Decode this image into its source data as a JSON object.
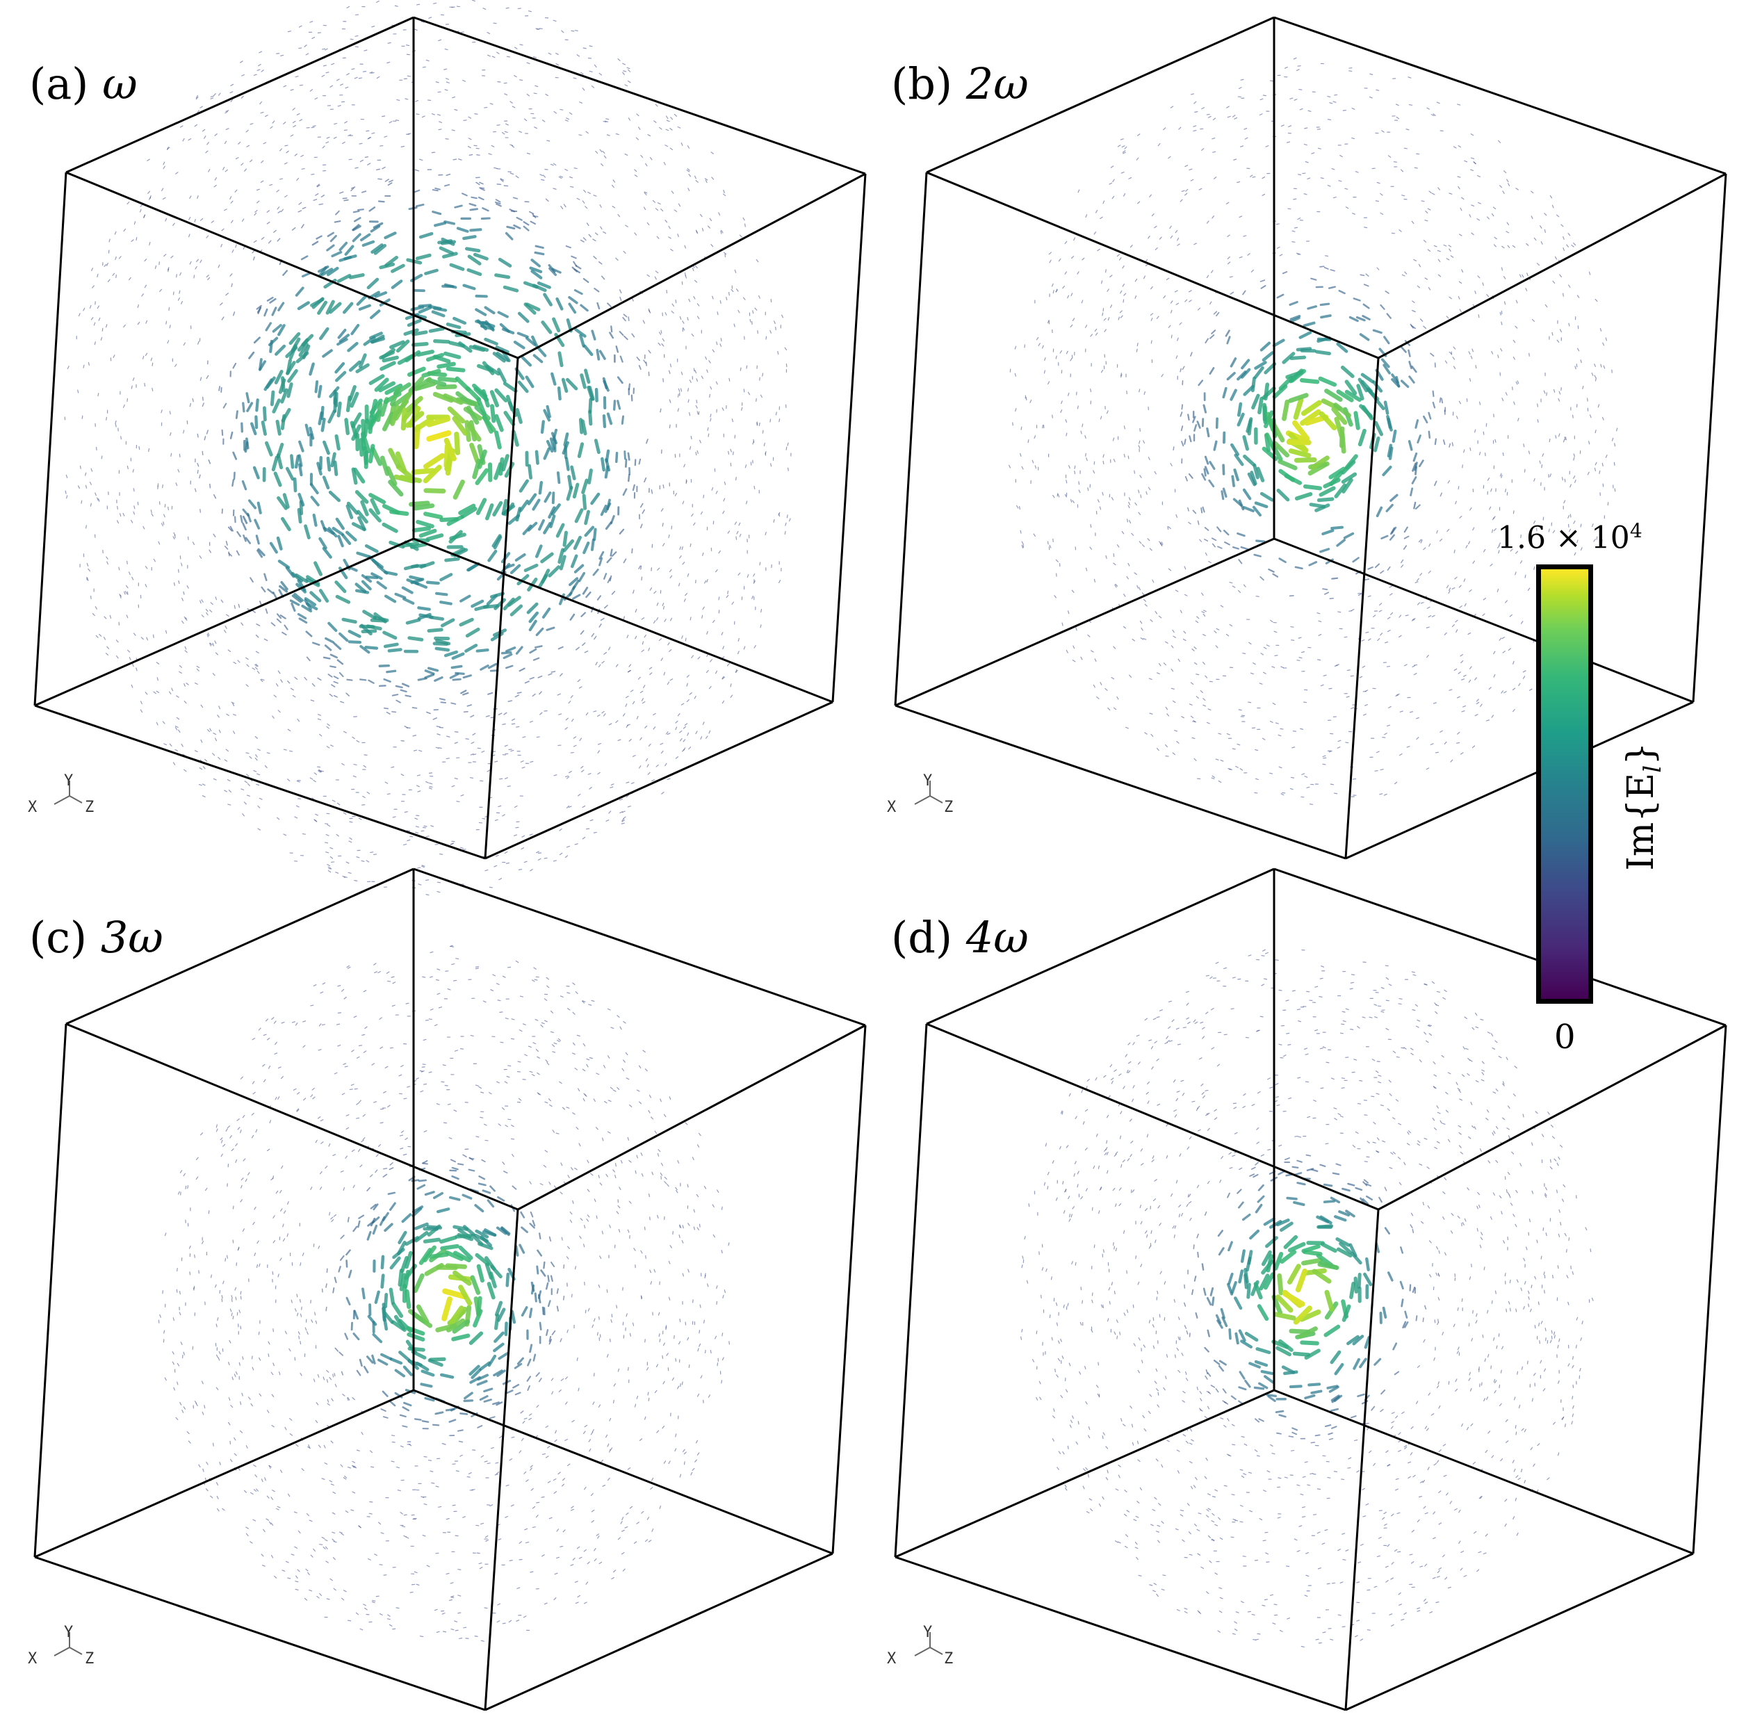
{
  "panels": [
    {
      "id": "a",
      "label_prefix": "(a)",
      "label_symbol": "ω"
    },
    {
      "id": "b",
      "label_prefix": "(b)",
      "label_symbol": "2ω"
    },
    {
      "id": "c",
      "label_prefix": "(c)",
      "label_symbol": "3ω"
    },
    {
      "id": "d",
      "label_prefix": "(d)",
      "label_symbol": "4ω"
    }
  ],
  "axes": {
    "x": "X",
    "y": "Y",
    "z": "Z"
  },
  "colorbar": {
    "max_label": "1.6 × 10",
    "max_exponent": "4",
    "min_label": "0",
    "title": "Im{E",
    "title_sub": "l",
    "title_end": "}",
    "colormap": "viridis"
  },
  "colors": {
    "low": "#3b4a8a",
    "mid": "#21918c",
    "high": "#fde725",
    "frame": "#000000"
  }
}
